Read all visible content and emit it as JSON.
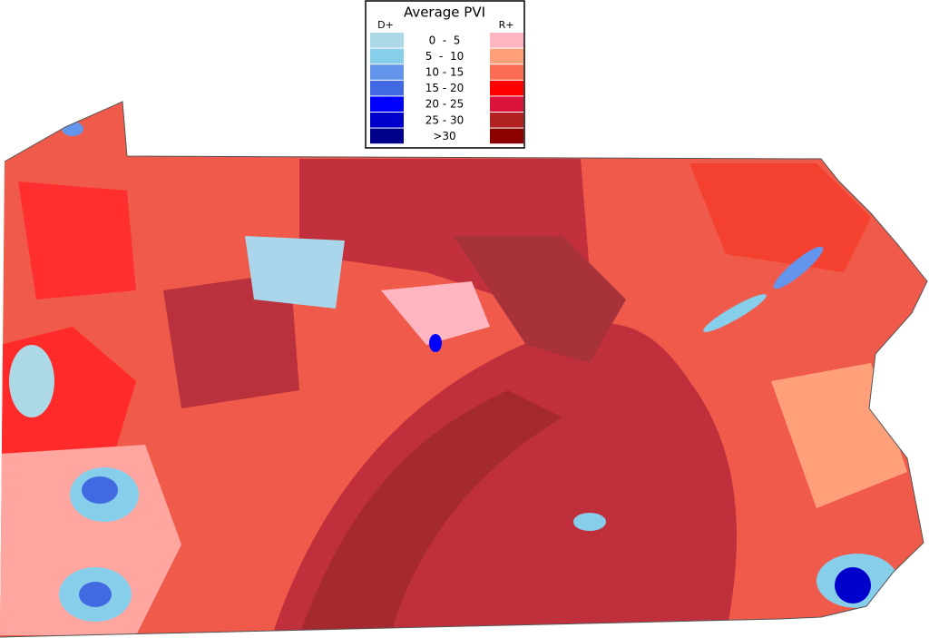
{
  "legend": {
    "title": "Average PVI",
    "d_label": "D+",
    "r_label": "R+",
    "rows": [
      {
        "range": "0  -  5",
        "d_color": "#add8e6",
        "r_color": "#ffb6c1"
      },
      {
        "range": "5  -  10",
        "d_color": "#87ceeb",
        "r_color": "#ffa07a"
      },
      {
        "range": "10 - 15",
        "d_color": "#6495ed",
        "r_color": "#fa6c54"
      },
      {
        "range": "15 - 20",
        "d_color": "#4169e1",
        "r_color": "#ff0000"
      },
      {
        "range": "20 - 25",
        "d_color": "#0000ff",
        "r_color": "#dc143c"
      },
      {
        "range": "25 - 30",
        "d_color": "#0000cd",
        "r_color": "#b22222"
      },
      {
        "range": ">30",
        "d_color": "#00008b",
        "r_color": "#8b0000"
      }
    ]
  }
}
